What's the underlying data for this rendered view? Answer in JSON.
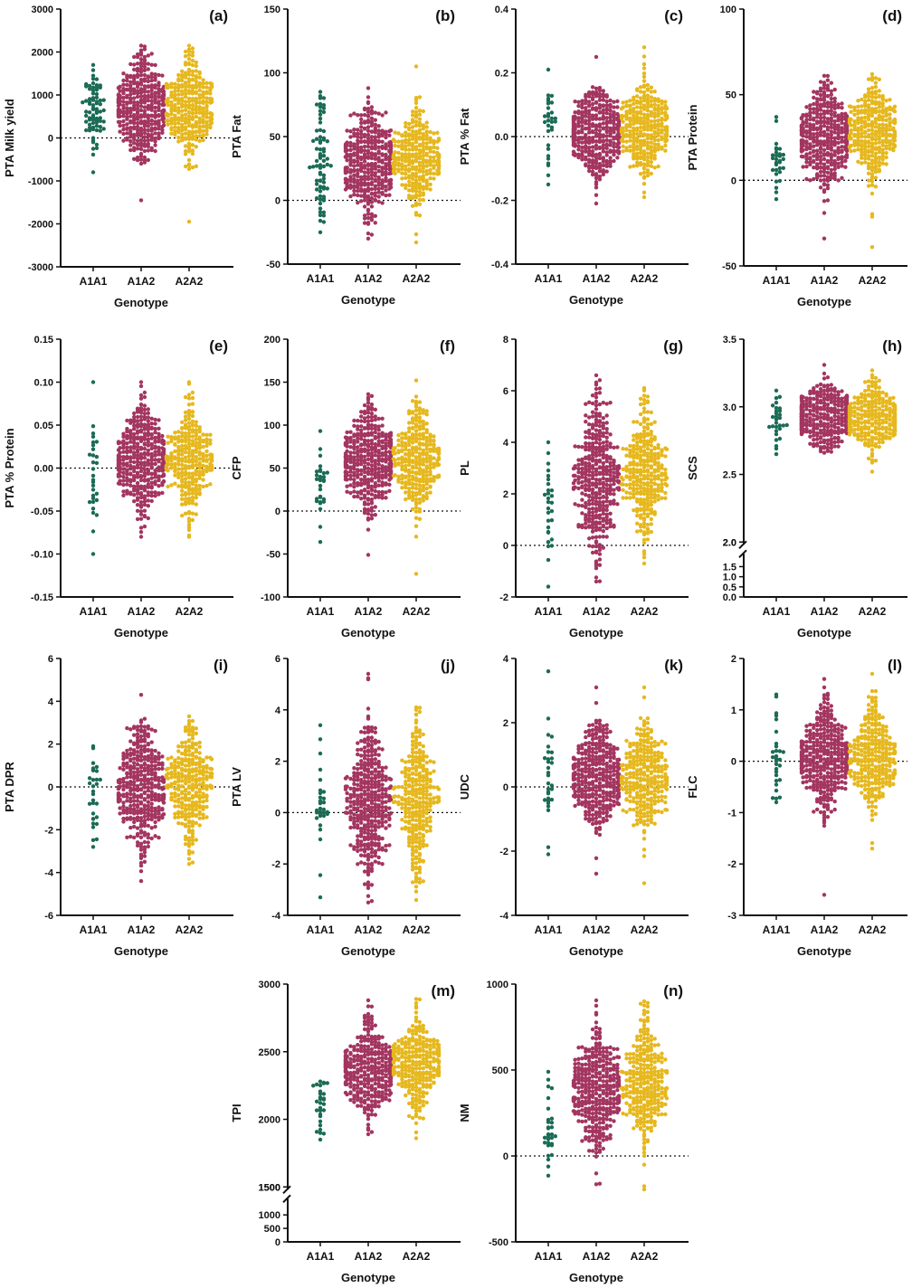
{
  "figure": {
    "colors": {
      "A1A1": "#1b6b55",
      "A1A2": "#a33560",
      "A2A2": "#e6b81e",
      "axis": "#111111"
    },
    "genotype_label": "Genotype"
  },
  "chart_data": [
    {
      "type": "scatter",
      "panel": "(a)",
      "ylabel": "PTA Milk yield",
      "xlabel": "Genotype",
      "categories": [
        "A1A1",
        "A1A2",
        "A2A2"
      ],
      "ylim": [
        -3000,
        3000
      ],
      "yticks": [
        -3000,
        -2000,
        -1000,
        0,
        1000,
        2000,
        3000
      ],
      "series": [
        {
          "name": "A1A1",
          "n": 75,
          "mean": 650,
          "sd": 450,
          "min": -800,
          "max": 1700
        },
        {
          "name": "A1A2",
          "n": 380,
          "mean": 700,
          "sd": 550,
          "min": -1450,
          "max": 2150
        },
        {
          "name": "A2A2",
          "n": 300,
          "mean": 750,
          "sd": 550,
          "min": -1950,
          "max": 2150
        }
      ],
      "ref_line": 0
    },
    {
      "type": "scatter",
      "panel": "(b)",
      "ylabel": "PTA Fat",
      "xlabel": "Genotype",
      "categories": [
        "A1A1",
        "A1A2",
        "A2A2"
      ],
      "ylim": [
        -50,
        150
      ],
      "yticks": [
        -50,
        0,
        50,
        100,
        150
      ],
      "series": [
        {
          "name": "A1A1",
          "n": 75,
          "mean": 30,
          "sd": 25,
          "min": -25,
          "max": 85
        },
        {
          "name": "A1A2",
          "n": 380,
          "mean": 30,
          "sd": 20,
          "min": -30,
          "max": 88
        },
        {
          "name": "A2A2",
          "n": 300,
          "mean": 35,
          "sd": 20,
          "min": -33,
          "max": 105
        }
      ],
      "ref_line": 0
    },
    {
      "type": "scatter",
      "panel": "(c)",
      "ylabel": "PTA % Fat",
      "xlabel": "Genotype",
      "categories": [
        "A1A1",
        "A1A2",
        "A2A2"
      ],
      "ylim": [
        -0.4,
        0.4
      ],
      "yticks": [
        -0.4,
        -0.2,
        0.0,
        0.2,
        0.4
      ],
      "series": [
        {
          "name": "A1A1",
          "n": 30,
          "mean": 0.02,
          "sd": 0.08,
          "min": -0.15,
          "max": 0.21
        },
        {
          "name": "A1A2",
          "n": 380,
          "mean": 0.01,
          "sd": 0.07,
          "min": -0.21,
          "max": 0.25
        },
        {
          "name": "A2A2",
          "n": 300,
          "mean": 0.03,
          "sd": 0.07,
          "min": -0.19,
          "max": 0.28
        }
      ],
      "ref_line": 0
    },
    {
      "type": "scatter",
      "panel": "(d)",
      "ylabel": "PTA Protein",
      "xlabel": "Genotype",
      "categories": [
        "A1A1",
        "A1A2",
        "A2A2"
      ],
      "ylim": [
        -50,
        100
      ],
      "yticks": [
        -50,
        0,
        50,
        100
      ],
      "series": [
        {
          "name": "A1A1",
          "n": 30,
          "mean": 13,
          "sd": 11,
          "min": -11,
          "max": 37
        },
        {
          "name": "A1A2",
          "n": 380,
          "mean": 25,
          "sd": 15,
          "min": -34,
          "max": 61
        },
        {
          "name": "A2A2",
          "n": 300,
          "mean": 27,
          "sd": 14,
          "min": -39,
          "max": 62
        }
      ],
      "ref_line": 0
    },
    {
      "type": "scatter",
      "panel": "(e)",
      "ylabel": "PTA % Protein",
      "xlabel": "Genotype",
      "categories": [
        "A1A1",
        "A1A2",
        "A2A2"
      ],
      "ylim": [
        -0.15,
        0.15
      ],
      "yticks": [
        -0.15,
        -0.1,
        -0.05,
        0.0,
        0.05,
        0.1,
        0.15
      ],
      "series": [
        {
          "name": "A1A1",
          "n": 30,
          "mean": 0.0,
          "sd": 0.035,
          "min": -0.1,
          "max": 0.1
        },
        {
          "name": "A1A2",
          "n": 380,
          "mean": 0.01,
          "sd": 0.03,
          "min": -0.08,
          "max": 0.1
        },
        {
          "name": "A2A2",
          "n": 300,
          "mean": 0.01,
          "sd": 0.03,
          "min": -0.08,
          "max": 0.1
        }
      ],
      "ref_line": 0
    },
    {
      "type": "scatter",
      "panel": "(f)",
      "ylabel": "CFP",
      "xlabel": "Genotype",
      "categories": [
        "A1A1",
        "A1A2",
        "A2A2"
      ],
      "ylim": [
        -100,
        200
      ],
      "yticks": [
        -100,
        -50,
        0,
        50,
        100,
        150,
        200
      ],
      "series": [
        {
          "name": "A1A1",
          "n": 30,
          "mean": 30,
          "sd": 25,
          "min": -36,
          "max": 93
        },
        {
          "name": "A1A2",
          "n": 380,
          "mean": 60,
          "sd": 30,
          "min": -51,
          "max": 136
        },
        {
          "name": "A2A2",
          "n": 300,
          "mean": 63,
          "sd": 30,
          "min": -73,
          "max": 152
        }
      ],
      "ref_line": 0
    },
    {
      "type": "scatter",
      "panel": "(g)",
      "ylabel": "PL",
      "xlabel": "Genotype",
      "categories": [
        "A1A1",
        "A1A2",
        "A2A2"
      ],
      "ylim": [
        -2,
        8
      ],
      "yticks": [
        -2,
        0,
        2,
        4,
        6,
        8
      ],
      "series": [
        {
          "name": "A1A1",
          "n": 30,
          "mean": 1.6,
          "sd": 1.3,
          "min": -1.6,
          "max": 4.0
        },
        {
          "name": "A1A2",
          "n": 380,
          "mean": 2.6,
          "sd": 1.5,
          "min": -1.4,
          "max": 6.6
        },
        {
          "name": "A2A2",
          "n": 300,
          "mean": 2.9,
          "sd": 1.4,
          "min": -0.7,
          "max": 6.1
        }
      ],
      "ref_line": 0
    },
    {
      "type": "scatter",
      "panel": "(h)",
      "ylabel": "SCS",
      "xlabel": "Genotype",
      "categories": [
        "A1A1",
        "A1A2",
        "A2A2"
      ],
      "ylim": [
        0.0,
        3.5
      ],
      "axis_break": [
        0.0,
        2.0
      ],
      "yticks_upper": [
        2.0,
        2.5,
        3.0,
        3.5
      ],
      "yticks_lower": [
        0.0,
        0.5,
        1.0,
        1.5,
        2.0
      ],
      "series": [
        {
          "name": "A1A1",
          "n": 30,
          "mean": 2.92,
          "sd": 0.1,
          "min": 2.65,
          "max": 3.12
        },
        {
          "name": "A1A2",
          "n": 380,
          "mean": 2.93,
          "sd": 0.12,
          "min": 2.66,
          "max": 3.31
        },
        {
          "name": "A2A2",
          "n": 300,
          "mean": 2.91,
          "sd": 0.13,
          "min": 2.52,
          "max": 3.27
        }
      ]
    },
    {
      "type": "scatter",
      "panel": "(i)",
      "ylabel": "PTA DPR",
      "xlabel": "Genotype",
      "categories": [
        "A1A1",
        "A1A2",
        "A2A2"
      ],
      "ylim": [
        -6,
        6
      ],
      "yticks": [
        -6,
        -4,
        -2,
        0,
        2,
        4,
        6
      ],
      "series": [
        {
          "name": "A1A1",
          "n": 30,
          "mean": -0.3,
          "sd": 1.4,
          "min": -2.8,
          "max": 1.9
        },
        {
          "name": "A1A2",
          "n": 380,
          "mean": 0.0,
          "sd": 1.4,
          "min": -4.4,
          "max": 4.3
        },
        {
          "name": "A2A2",
          "n": 300,
          "mean": 0.1,
          "sd": 1.3,
          "min": -3.6,
          "max": 3.3
        }
      ],
      "ref_line": 0
    },
    {
      "type": "scatter",
      "panel": "(j)",
      "ylabel": "PTA LV",
      "xlabel": "Genotype",
      "categories": [
        "A1A1",
        "A1A2",
        "A2A2"
      ],
      "ylim": [
        -4,
        6
      ],
      "yticks": [
        -4,
        -2,
        0,
        2,
        4,
        6
      ],
      "series": [
        {
          "name": "A1A1",
          "n": 30,
          "mean": 0.2,
          "sd": 1.3,
          "min": -3.3,
          "max": 3.4
        },
        {
          "name": "A1A2",
          "n": 380,
          "mean": 0.4,
          "sd": 1.5,
          "min": -3.5,
          "max": 5.4
        },
        {
          "name": "A2A2",
          "n": 300,
          "mean": 0.5,
          "sd": 1.4,
          "min": -3.4,
          "max": 4.1
        }
      ],
      "ref_line": 0
    },
    {
      "type": "scatter",
      "panel": "(k)",
      "ylabel": "UDC",
      "xlabel": "Genotype",
      "categories": [
        "A1A1",
        "A1A2",
        "A2A2"
      ],
      "ylim": [
        -4,
        4
      ],
      "yticks": [
        -4,
        -2,
        0,
        2,
        4
      ],
      "series": [
        {
          "name": "A1A1",
          "n": 30,
          "mean": 0.3,
          "sd": 0.9,
          "min": -2.1,
          "max": 3.6
        },
        {
          "name": "A1A2",
          "n": 380,
          "mean": 0.3,
          "sd": 0.8,
          "min": -2.7,
          "max": 3.1
        },
        {
          "name": "A2A2",
          "n": 300,
          "mean": 0.3,
          "sd": 0.8,
          "min": -3.0,
          "max": 3.1
        }
      ],
      "ref_line": 0
    },
    {
      "type": "scatter",
      "panel": "(l)",
      "ylabel": "FLC",
      "xlabel": "Genotype",
      "categories": [
        "A1A1",
        "A1A2",
        "A2A2"
      ],
      "ylim": [
        -3,
        2
      ],
      "yticks": [
        -3,
        -2,
        -1,
        0,
        1,
        2
      ],
      "series": [
        {
          "name": "A1A1",
          "n": 30,
          "mean": 0.0,
          "sd": 0.5,
          "min": -0.8,
          "max": 1.3
        },
        {
          "name": "A1A2",
          "n": 380,
          "mean": 0.1,
          "sd": 0.5,
          "min": -2.6,
          "max": 1.6
        },
        {
          "name": "A2A2",
          "n": 300,
          "mean": 0.1,
          "sd": 0.5,
          "min": -1.7,
          "max": 1.7
        }
      ],
      "ref_line": 0
    },
    {
      "type": "scatter",
      "panel": "(m)",
      "ylabel": "TPI",
      "xlabel": "Genotype",
      "categories": [
        "A1A1",
        "A1A2",
        "A2A2"
      ],
      "ylim": [
        0,
        3000
      ],
      "axis_break": [
        0,
        1500
      ],
      "yticks_upper": [
        1500,
        2000,
        2500,
        3000
      ],
      "yticks_lower": [
        0,
        500,
        1000,
        1500
      ],
      "series": [
        {
          "name": "A1A1",
          "n": 30,
          "mean": 2150,
          "sd": 120,
          "min": 1850,
          "max": 2280
        },
        {
          "name": "A1A2",
          "n": 380,
          "mean": 2370,
          "sd": 170,
          "min": 1890,
          "max": 2880
        },
        {
          "name": "A2A2",
          "n": 300,
          "mean": 2410,
          "sd": 170,
          "min": 1860,
          "max": 2890
        }
      ]
    },
    {
      "type": "scatter",
      "panel": "(n)",
      "ylabel": "NM",
      "xlabel": "Genotype",
      "categories": [
        "A1A1",
        "A1A2",
        "A2A2"
      ],
      "ylim": [
        -500,
        1000
      ],
      "yticks": [
        -500,
        0,
        500,
        1000
      ],
      "series": [
        {
          "name": "A1A1",
          "n": 30,
          "mean": 200,
          "sd": 140,
          "min": -115,
          "max": 490
        },
        {
          "name": "A1A2",
          "n": 380,
          "mean": 380,
          "sd": 170,
          "min": -165,
          "max": 905
        },
        {
          "name": "A2A2",
          "n": 300,
          "mean": 420,
          "sd": 170,
          "min": -195,
          "max": 900
        }
      ],
      "ref_line": 0
    }
  ]
}
